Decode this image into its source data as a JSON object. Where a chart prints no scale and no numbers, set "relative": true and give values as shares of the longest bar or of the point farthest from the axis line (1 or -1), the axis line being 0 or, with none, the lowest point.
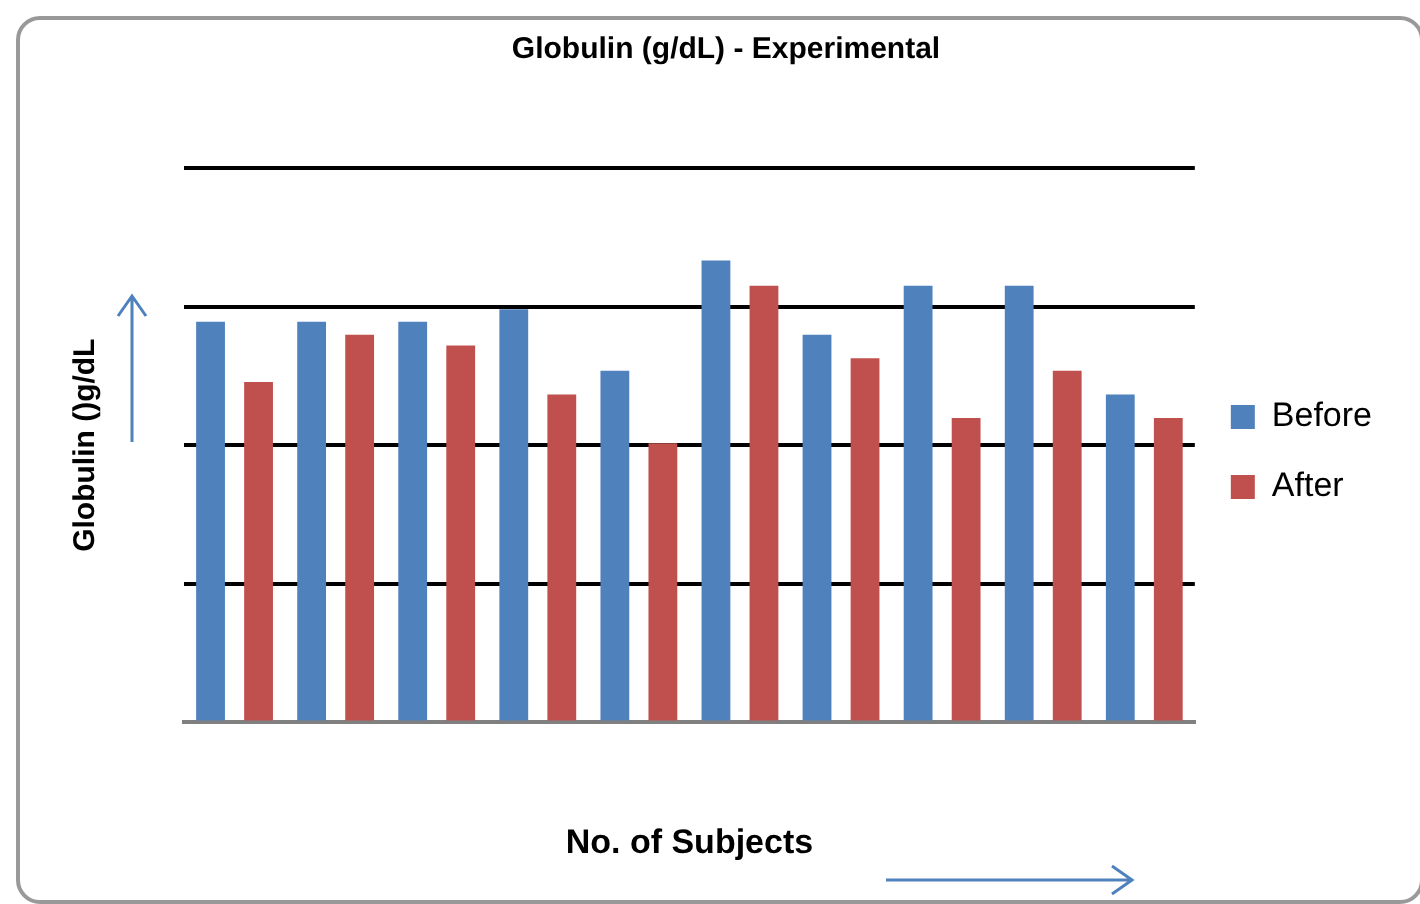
{
  "chart_data": {
    "type": "bar",
    "title": "Globulin (g/dL) - Experimental",
    "xlabel": "No. of Subjects",
    "ylabel": "Globulin ()g/dL",
    "relative": true,
    "grid": "y",
    "legend": "right",
    "categories": [
      null,
      null,
      null,
      null,
      null,
      null,
      null,
      null,
      null,
      null
    ],
    "series": [
      {
        "name": "Before",
        "color": "#4f81bd",
        "values": [
          0.867,
          0.867,
          0.867,
          0.894,
          0.761,
          1,
          0.839,
          0.945,
          0.945,
          0.71
        ]
      },
      {
        "name": "After",
        "color": "#c0504d",
        "values": [
          0.737,
          0.839,
          0.816,
          0.71,
          0.604,
          0.945,
          0.788,
          0.659,
          0.761,
          0.659
        ]
      }
    ]
  }
}
